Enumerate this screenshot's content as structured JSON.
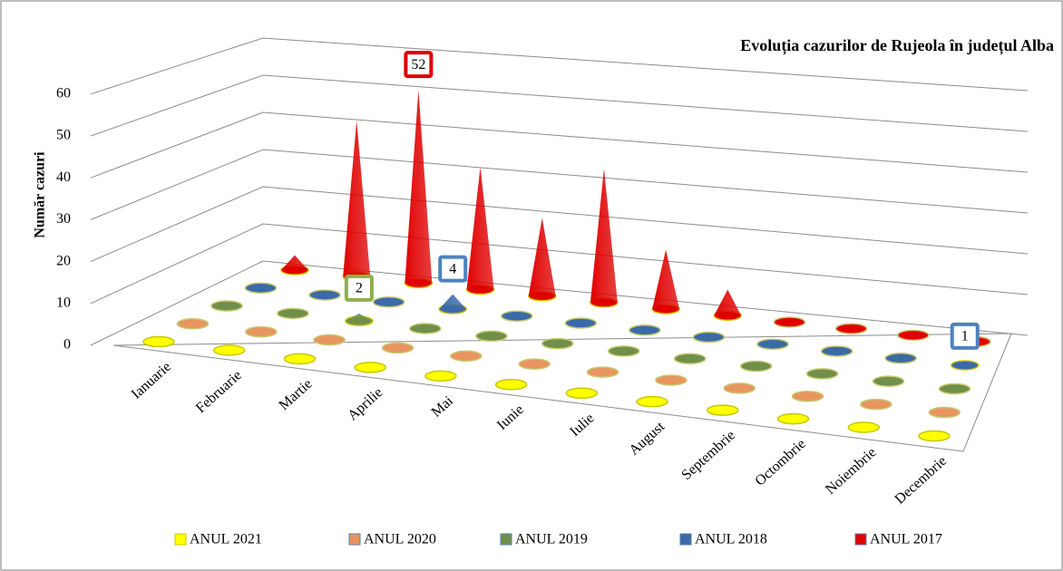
{
  "chart_data": {
    "type": "cone3d",
    "title": "Evoluția cazurilor de Rujeola în județul Alba",
    "y_axis_label": "Număr cazuri",
    "categories": [
      "Ianuarie",
      "Februarie",
      "Martie",
      "Aprilie",
      "Mai",
      "Iunie",
      "Iulie",
      "August",
      "Septembrie",
      "Octombrie",
      "Noiembrie",
      "Decembrie"
    ],
    "ylim": [
      0,
      60
    ],
    "yticks": [
      0,
      10,
      20,
      30,
      40,
      50,
      60
    ],
    "grid": true,
    "legend": "bottom",
    "series": [
      {
        "name": "ANUL 2021",
        "color": "#ffff00",
        "values": [
          0,
          0,
          0,
          0,
          0,
          0,
          0,
          0,
          0,
          0,
          0,
          0
        ]
      },
      {
        "name": "ANUL 2020",
        "color": "#e8955f",
        "values": [
          0,
          0,
          0,
          0,
          0,
          0,
          0,
          0,
          0,
          0,
          0,
          0
        ]
      },
      {
        "name": "ANUL 2019",
        "color": "#6f8f4a",
        "values": [
          0,
          0,
          2,
          0,
          0,
          0,
          0,
          0,
          0,
          0,
          0,
          0
        ],
        "value_labels": [
          null,
          null,
          "2",
          null,
          null,
          null,
          null,
          null,
          null,
          null,
          null,
          null
        ],
        "label_color": "#8db04a"
      },
      {
        "name": "ANUL 2018",
        "color": "#3a6aa8",
        "values": [
          0,
          0,
          0,
          4,
          0,
          0,
          0,
          0,
          0,
          0,
          0,
          1
        ],
        "value_labels": [
          null,
          null,
          null,
          "4",
          null,
          null,
          null,
          null,
          null,
          null,
          null,
          "1"
        ],
        "label_color": "#4f81bd"
      },
      {
        "name": "ANUL 2017",
        "color": "#e00000",
        "values": [
          4,
          42,
          52,
          33,
          21,
          36,
          16,
          7,
          0,
          0,
          0,
          0
        ],
        "value_labels": [
          null,
          null,
          "52",
          null,
          null,
          null,
          null,
          null,
          null,
          null,
          null,
          null
        ],
        "label_color": "#e00000"
      }
    ]
  }
}
